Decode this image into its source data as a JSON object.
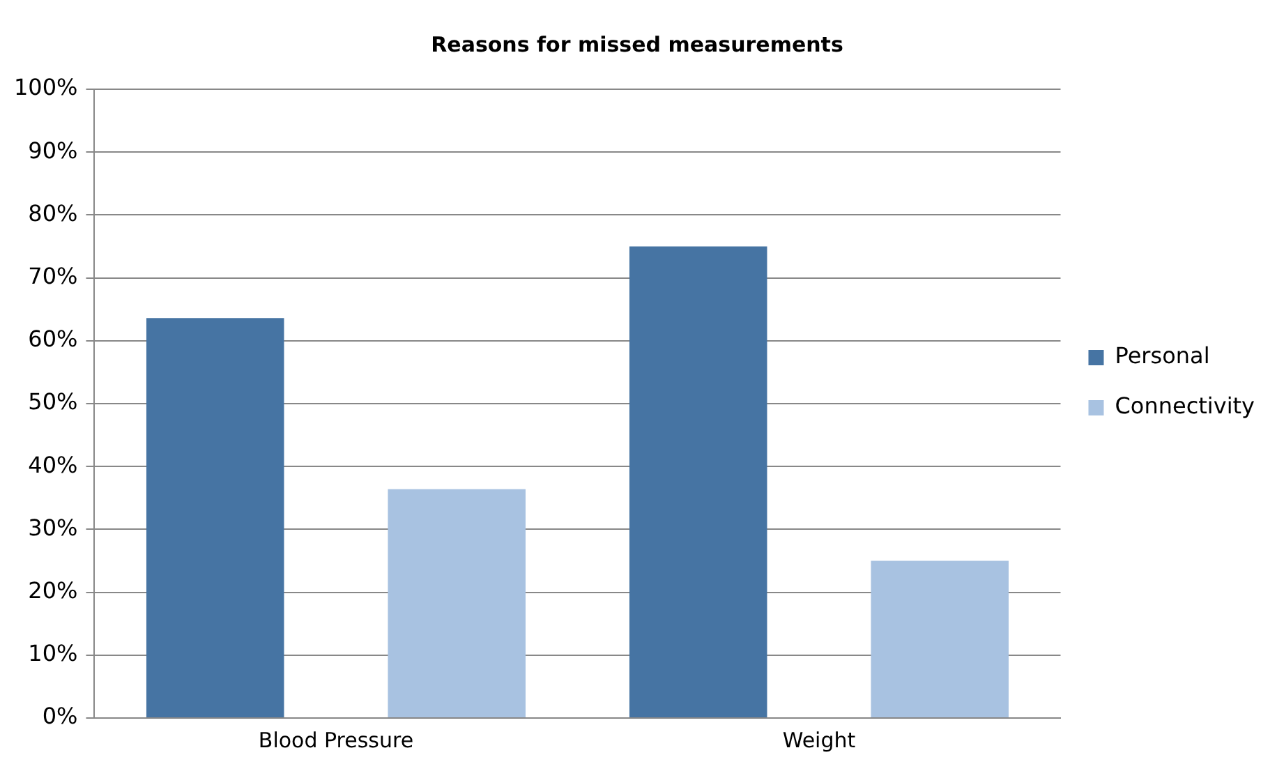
{
  "chart_data": {
    "type": "bar",
    "title": "Reasons for missed measurements",
    "categories": [
      "Blood Pressure",
      "Weight"
    ],
    "series": [
      {
        "name": "Personal",
        "color": "#4674a3",
        "values": [
          63.6,
          75
        ]
      },
      {
        "name": "Connectivity",
        "color": "#a8c2e1",
        "values": [
          36.4,
          25
        ]
      }
    ],
    "ylim": [
      0,
      100
    ],
    "yticks": [
      {
        "value": 0,
        "label": "0%"
      },
      {
        "value": 10,
        "label": "10%"
      },
      {
        "value": 20,
        "label": "20%"
      },
      {
        "value": 30,
        "label": "30%"
      },
      {
        "value": 40,
        "label": "40%"
      },
      {
        "value": 50,
        "label": "50%"
      },
      {
        "value": 60,
        "label": "60%"
      },
      {
        "value": 70,
        "label": "70%"
      },
      {
        "value": 80,
        "label": "80%"
      },
      {
        "value": 90,
        "label": "90%"
      },
      {
        "value": 100,
        "label": "100%"
      }
    ],
    "grid": "y",
    "legend": "right"
  }
}
